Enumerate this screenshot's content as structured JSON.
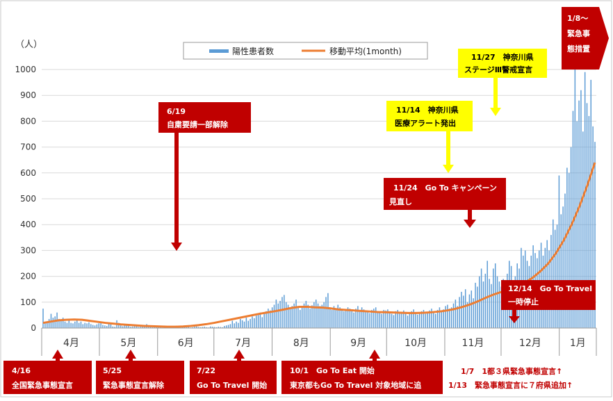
{
  "chart_data": {
    "type": "bar",
    "ylabel": "（人）",
    "ylim": [
      0,
      1000
    ],
    "yticks": [
      0,
      100,
      200,
      300,
      400,
      500,
      600,
      700,
      800,
      900,
      1000
    ],
    "months": [
      "4月",
      "5月",
      "6月",
      "7月",
      "8月",
      "9月",
      "10月",
      "11月",
      "12月",
      "1月"
    ],
    "legend": [
      {
        "label": "陽性患者数",
        "color": "#5b9bd5"
      },
      {
        "label": "移動平均(1month)",
        "color": "#ed7d31"
      }
    ],
    "series": [
      {
        "name": "陽性患者数",
        "x_start": "2020-04-01",
        "x_end": "2021-01-20",
        "values": [
          75,
          18,
          20,
          35,
          55,
          40,
          45,
          60,
          35,
          30,
          40,
          25,
          20,
          35,
          20,
          18,
          25,
          30,
          20,
          25,
          15,
          20,
          18,
          22,
          15,
          12,
          10,
          14,
          18,
          20,
          12,
          10,
          8,
          20,
          15,
          6,
          5,
          30,
          20,
          10,
          7,
          12,
          15,
          8,
          5,
          6,
          10,
          12,
          4,
          5,
          8,
          12,
          15,
          10,
          5,
          3,
          4,
          5,
          6,
          4,
          2,
          3,
          5,
          4,
          2,
          8,
          5,
          4,
          3,
          2,
          6,
          5,
          3,
          4,
          2,
          3,
          5,
          6,
          4,
          3,
          4,
          5,
          3,
          2,
          6,
          5,
          4,
          3,
          5,
          4,
          3,
          8,
          10,
          12,
          15,
          28,
          18,
          25,
          20,
          35,
          30,
          25,
          40,
          28,
          35,
          45,
          38,
          48,
          52,
          60,
          42,
          55,
          65,
          75,
          68,
          80,
          90,
          110,
          95,
          105,
          120,
          128,
          100,
          90,
          75,
          85,
          95,
          110,
          85,
          70,
          80,
          95,
          105,
          90,
          75,
          88,
          100,
          110,
          95,
          85,
          90,
          100,
          120,
          135,
          80,
          70,
          85,
          75,
          90,
          80,
          70,
          65,
          72,
          80,
          75,
          70,
          60,
          75,
          85,
          65,
          80,
          72,
          68,
          65,
          58,
          70,
          75,
          80,
          65,
          60,
          55,
          70,
          68,
          72,
          60,
          55,
          50,
          65,
          70,
          58,
          62,
          68,
          55,
          48,
          60,
          65,
          72,
          58,
          52,
          60,
          65,
          70,
          55,
          62,
          68,
          75,
          60,
          55,
          70,
          80,
          65,
          72,
          85,
          90,
          75,
          80,
          95,
          110,
          85,
          120,
          140,
          125,
          150,
          100,
          130,
          145,
          115,
          175,
          160,
          200,
          230,
          180,
          210,
          260,
          190,
          170,
          230,
          250,
          200,
          180,
          160,
          190,
          175,
          210,
          260,
          240,
          180,
          200,
          250,
          230,
          310,
          280,
          300,
          260,
          240,
          280,
          320,
          290,
          270,
          300,
          330,
          280,
          310,
          340,
          300,
          360,
          420,
          380,
          400,
          590,
          440,
          470,
          520,
          620,
          600,
          700,
          840,
          1000,
          800,
          880,
          920,
          760,
          990,
          870,
          820,
          960,
          780,
          720
        ],
        "color": "#5b9bd5"
      },
      {
        "name": "移動平均(1month)",
        "values": [
          20,
          25,
          30,
          32,
          33,
          32,
          28,
          24,
          20,
          17,
          14,
          12,
          10,
          8,
          7,
          6,
          5,
          5,
          6,
          8,
          11,
          15,
          20,
          26,
          32,
          38,
          44,
          50,
          56,
          61,
          66,
          72,
          78,
          82,
          82,
          80,
          79,
          76,
          72,
          70,
          68,
          66,
          64,
          62,
          61,
          60,
          59,
          58,
          58,
          59,
          61,
          64,
          68,
          74,
          82,
          92,
          104,
          118,
          130,
          140,
          150,
          160,
          175,
          195,
          220,
          250,
          290,
          340,
          400,
          470,
          550,
          640
        ],
        "color": "#ed7d31"
      }
    ]
  },
  "annotations": [
    {
      "id": "a619",
      "lines": [
        "6/19",
        "自粛要請一部解除"
      ]
    },
    {
      "id": "a1114",
      "lines": [
        "11/14　神奈川県",
        "医療アラート発出"
      ]
    },
    {
      "id": "a1127",
      "lines": [
        "11/27　神奈川県",
        "ステージⅢ警戒宣言"
      ]
    },
    {
      "id": "a18",
      "lines": [
        "1/8～",
        "緊急事",
        "態措置"
      ]
    },
    {
      "id": "a1124",
      "lines": [
        "11/24　Go To キャンペーン",
        "見直し"
      ]
    },
    {
      "id": "a1214",
      "lines": [
        "12/14　Go To Travel",
        "一時停止"
      ]
    },
    {
      "id": "a416",
      "lines": [
        "4/16",
        "全国緊急事態宣言"
      ]
    },
    {
      "id": "a525",
      "lines": [
        "5/25",
        "緊急事態宣言解除"
      ]
    },
    {
      "id": "a722",
      "lines": [
        "7/22",
        "Go To Travel 開始"
      ]
    },
    {
      "id": "a101",
      "lines": [
        "10/1　Go To Eat 開始",
        "東京都もGo To Travel 対象地域に追"
      ]
    }
  ],
  "notes": [
    "1/7　1都３県緊急事態宣言↑",
    "1/13　緊急事態宣言に７府県追加↑"
  ]
}
